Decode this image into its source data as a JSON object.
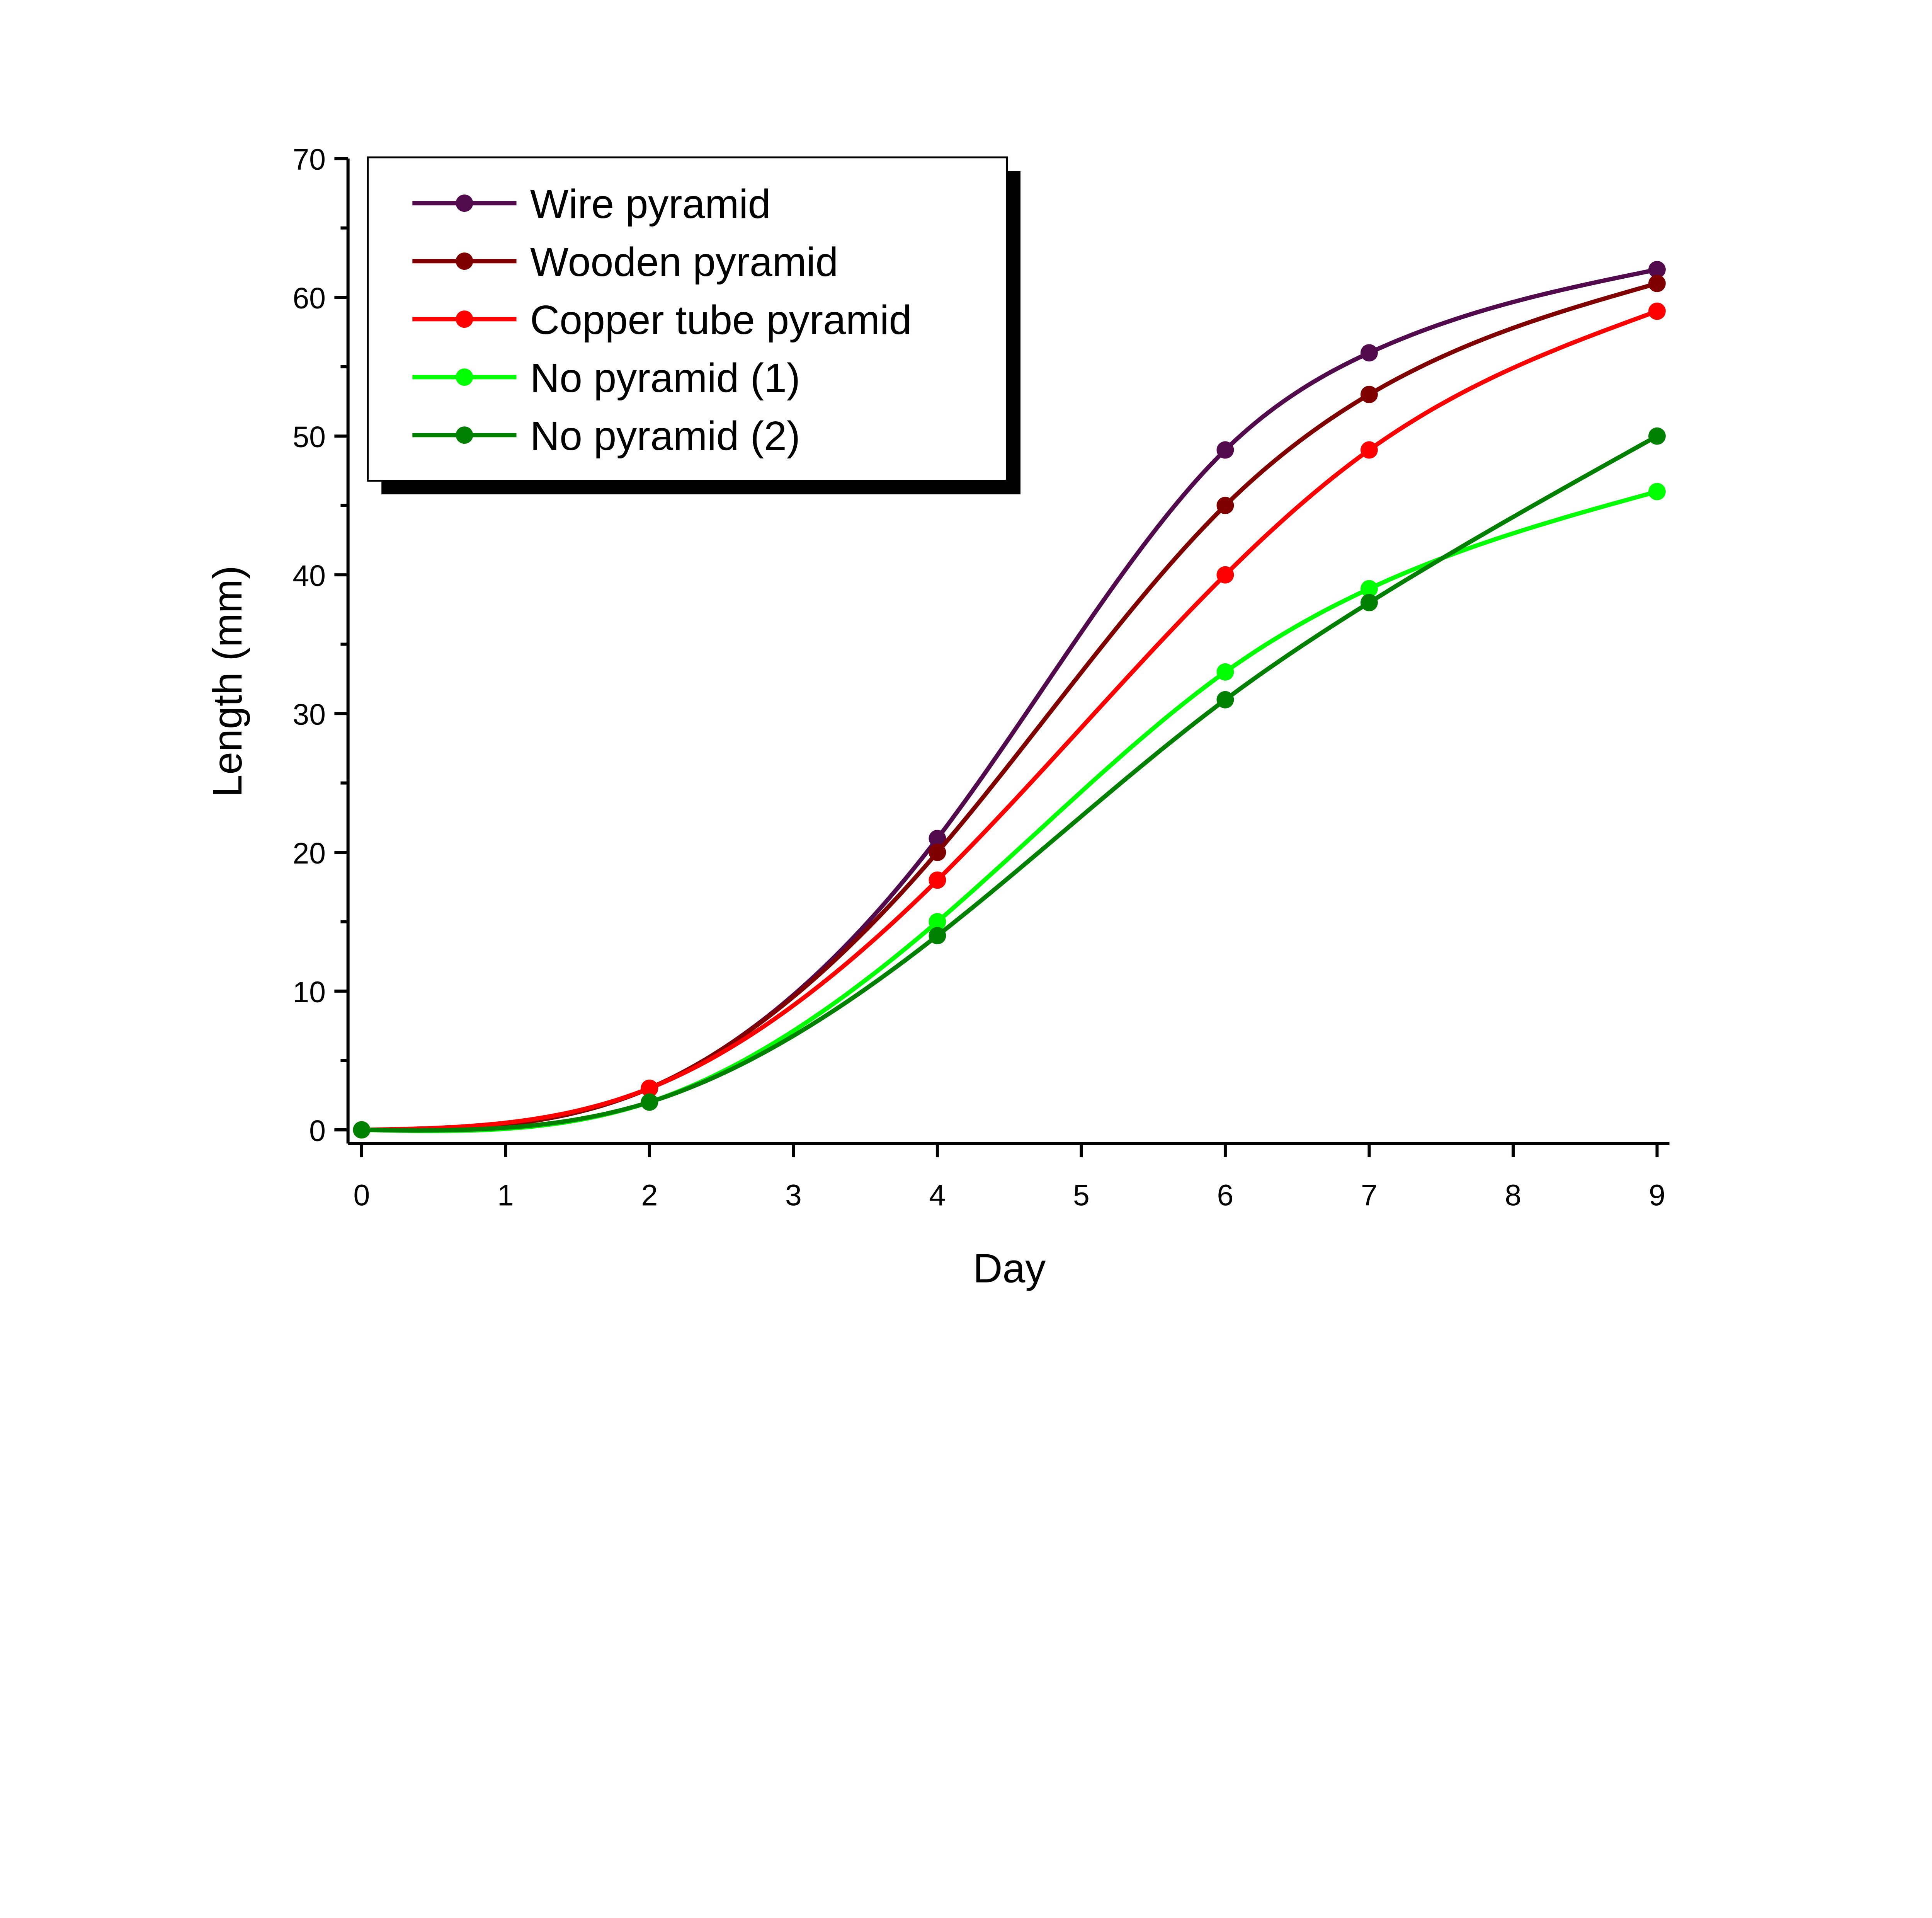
{
  "chart_data": {
    "type": "line",
    "xlabel": "Day",
    "ylabel": "Length (mm)",
    "xlim": [
      0,
      9
    ],
    "ylim": [
      0,
      70
    ],
    "xticks": [
      0,
      1,
      2,
      3,
      4,
      5,
      6,
      7,
      8,
      9
    ],
    "yticks": [
      0,
      10,
      20,
      30,
      40,
      50,
      60,
      70
    ],
    "grid": false,
    "legend_position": "top-left",
    "x": [
      0,
      2,
      4,
      6,
      7,
      9
    ],
    "series": [
      {
        "name": "Wire pyramid",
        "color": "#510A4B",
        "values": [
          0,
          3,
          21,
          49,
          56,
          62
        ]
      },
      {
        "name": "Wooden pyramid",
        "color": "#800000",
        "values": [
          0,
          3,
          20,
          45,
          53,
          61
        ]
      },
      {
        "name": "Copper tube pyramid",
        "color": "#FF0000",
        "values": [
          0,
          3,
          18,
          40,
          49,
          59
        ]
      },
      {
        "name": "No pyramid (1)",
        "color": "#00FF00",
        "values": [
          0,
          2,
          15,
          33,
          39,
          46
        ]
      },
      {
        "name": "No pyramid (2)",
        "color": "#008000",
        "values": [
          0,
          2,
          14,
          31,
          38,
          50
        ]
      }
    ]
  }
}
